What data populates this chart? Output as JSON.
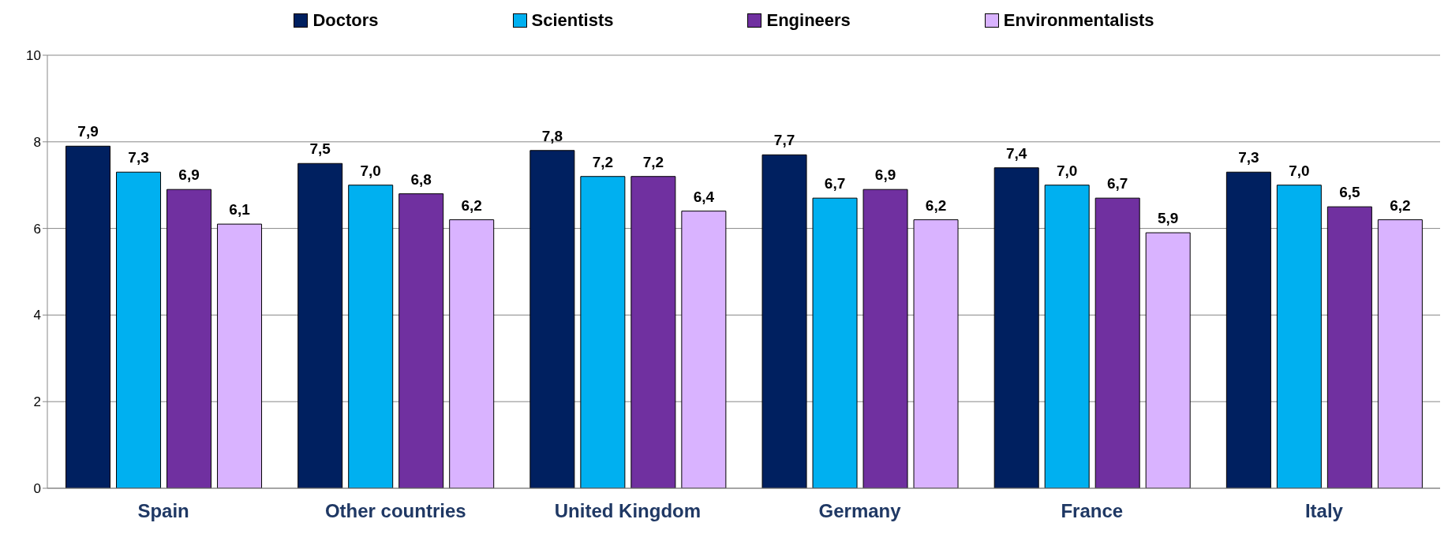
{
  "chart_data": {
    "type": "bar",
    "categories": [
      "Spain",
      "Other countries",
      "United Kingdom",
      "Germany",
      "France",
      "Italy"
    ],
    "series": [
      {
        "name": "Doctors",
        "color": "#002060",
        "values": [
          7.9,
          7.5,
          7.8,
          7.7,
          7.4,
          7.3
        ],
        "value_labels": [
          "7,9",
          "7,5",
          "7,8",
          "7,7",
          "7,4",
          "7,3"
        ]
      },
      {
        "name": "Scientists",
        "color": "#00b0f0",
        "values": [
          7.3,
          7.0,
          7.2,
          6.7,
          7.0,
          7.0
        ],
        "value_labels": [
          "7,3",
          "7,0",
          "7,2",
          "6,7",
          "7,0",
          "7,0"
        ]
      },
      {
        "name": "Engineers",
        "color": "#7030a0",
        "values": [
          6.9,
          6.8,
          7.2,
          6.9,
          6.7,
          6.5
        ],
        "value_labels": [
          "6,9",
          "6,8",
          "7,2",
          "6,9",
          "6,7",
          "6,5"
        ]
      },
      {
        "name": "Environmentalists",
        "color": "#d9b3ff",
        "values": [
          6.1,
          6.2,
          6.4,
          6.2,
          5.9,
          6.2
        ],
        "value_labels": [
          "6,1",
          "6,2",
          "6,4",
          "6,2",
          "5,9",
          "6,2"
        ]
      }
    ],
    "ylim": [
      0,
      10
    ],
    "yticks": [
      0,
      2,
      4,
      6,
      8,
      10
    ],
    "grid": "y",
    "legend": "top"
  }
}
